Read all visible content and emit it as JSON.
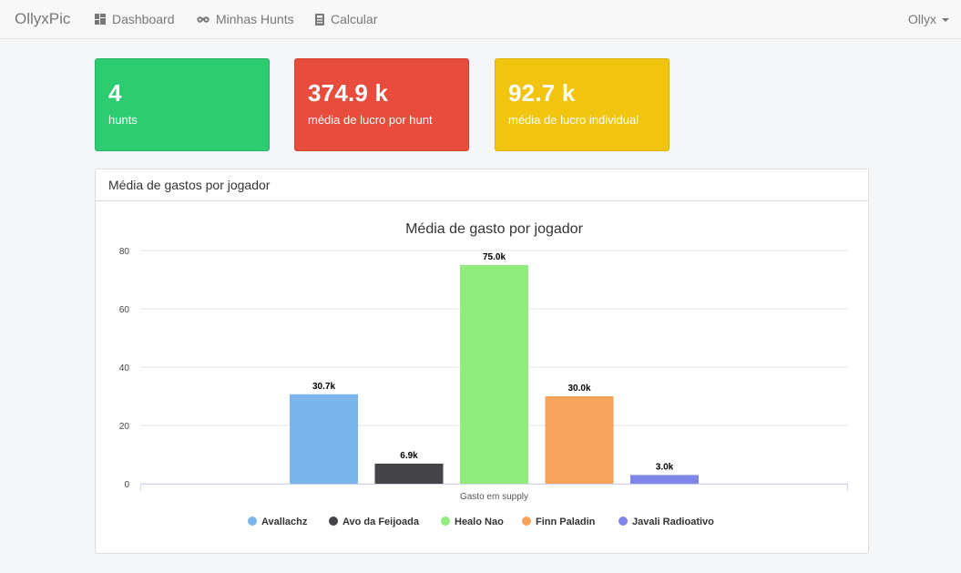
{
  "navbar": {
    "brand": "OllyxPic",
    "items": [
      {
        "label": "Dashboard",
        "icon": "dashboard-icon"
      },
      {
        "label": "Minhas Hunts",
        "icon": "binoculars-icon"
      },
      {
        "label": "Calcular",
        "icon": "calculator-icon"
      }
    ],
    "user": "Ollyx"
  },
  "stats": [
    {
      "value": "4",
      "label": "hunts",
      "color": "#2ecc71"
    },
    {
      "value": "374.9 k",
      "label": "média de lucro por hunt",
      "color": "#e74c3c"
    },
    {
      "value": "92.7 k",
      "label": "média de lucro individual",
      "color": "#f1c40f"
    }
  ],
  "panel": {
    "title": "Média de gastos por jogador"
  },
  "chart_data": {
    "type": "bar",
    "title": "Média de gasto por jogador",
    "xlabel": "",
    "ylabel": "",
    "categories": [
      "Gasto em supply"
    ],
    "ylim": [
      0,
      80
    ],
    "yticks": [
      "0",
      "20",
      "40",
      "60",
      "80"
    ],
    "grid": true,
    "legend_position": "bottom",
    "series": [
      {
        "name": "Avallachz",
        "values": [
          30.7
        ],
        "label": "30.7k",
        "color": "#7cb5ec"
      },
      {
        "name": "Avo da Feijoada",
        "values": [
          6.9
        ],
        "label": "6.9k",
        "color": "#434348"
      },
      {
        "name": "Healo Nao",
        "values": [
          75.0
        ],
        "label": "75.0k",
        "color": "#90ed7d"
      },
      {
        "name": "Finn Paladin",
        "values": [
          30.0
        ],
        "label": "30.0k",
        "color": "#f7a35c"
      },
      {
        "name": "Javali Radioativo",
        "values": [
          3.0
        ],
        "label": "3.0k",
        "color": "#8085e9"
      }
    ]
  }
}
